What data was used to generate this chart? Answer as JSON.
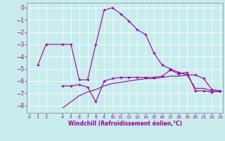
{
  "xlabel": "Windchill (Refroidissement éolien,°C)",
  "background_color": "#c8ecec",
  "line_color": "#990099",
  "grid_color": "#ffffff",
  "xlim": [
    -0.3,
    23.3
  ],
  "ylim": [
    -8.6,
    0.4
  ],
  "yticks": [
    0,
    -1,
    -2,
    -3,
    -4,
    -5,
    -6,
    -7,
    -8
  ],
  "xticks": [
    0,
    1,
    2,
    4,
    5,
    6,
    7,
    8,
    9,
    10,
    11,
    12,
    13,
    14,
    15,
    16,
    17,
    18,
    19,
    20,
    21,
    22,
    23
  ],
  "line1_x": [
    1,
    2,
    4,
    5,
    6,
    7,
    8,
    9,
    10,
    11,
    12,
    13,
    14,
    15,
    16,
    17,
    18,
    19,
    20,
    21,
    22,
    23
  ],
  "line1_y": [
    -4.7,
    -3.0,
    -3.0,
    -3.0,
    -5.9,
    -5.9,
    -3.0,
    -0.2,
    0.0,
    -0.5,
    -1.1,
    -1.8,
    -2.2,
    -3.7,
    -4.7,
    -5.0,
    -5.3,
    -5.5,
    -5.5,
    -5.8,
    -6.7,
    -6.8
  ],
  "line2_x": [
    4,
    5,
    6,
    7,
    8,
    9,
    10,
    11,
    12,
    13,
    14,
    15,
    16,
    17,
    18,
    19,
    20,
    21,
    22,
    23
  ],
  "line2_y": [
    -6.4,
    -6.4,
    -6.3,
    -6.5,
    -7.7,
    -6.0,
    -5.8,
    -5.7,
    -5.7,
    -5.7,
    -5.7,
    -5.7,
    -5.6,
    -5.1,
    -5.4,
    -5.3,
    -6.8,
    -6.8,
    -6.9,
    -6.8
  ],
  "line3_x": [
    4,
    5,
    6,
    7,
    8,
    9,
    10,
    11,
    12,
    13,
    14,
    15,
    16,
    17,
    18,
    19,
    20,
    21,
    22,
    23
  ],
  "line3_y": [
    -8.2,
    -7.7,
    -7.2,
    -6.9,
    -6.7,
    -6.4,
    -6.2,
    -6.1,
    -6.0,
    -5.9,
    -5.8,
    -5.8,
    -5.7,
    -5.6,
    -5.6,
    -5.5,
    -6.6,
    -6.6,
    -6.8,
    -6.9
  ]
}
